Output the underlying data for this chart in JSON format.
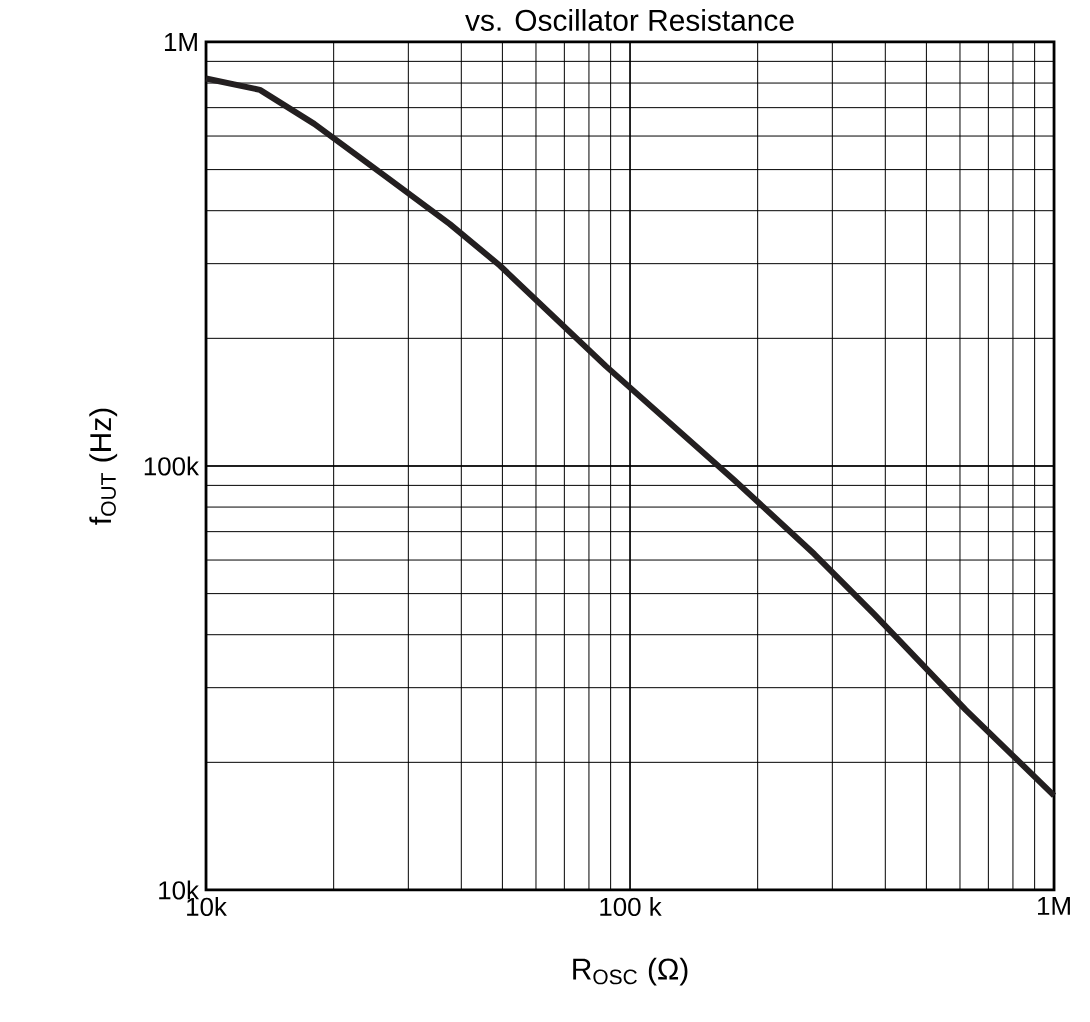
{
  "chart_data": {
    "type": "line",
    "title": "vs. Oscillator Resistance",
    "xlabel": "R$_{OSC}$ (Ω)",
    "ylabel": "f$_{OUT}$ (Hz)",
    "log": "xy",
    "grid": true,
    "x": [
      10000,
      13400,
      18000,
      27200,
      37600,
      49300,
      87700,
      176000,
      272000,
      376000,
      619000,
      1000000
    ],
    "series": [
      {
        "color": "#231f20",
        "values": [
          820000,
          771000,
          641000,
          473000,
          372000,
          297000,
          172000,
          92700,
          62000,
          44800,
          26600,
          16700
        ]
      }
    ],
    "xlim": [
      10000,
      1000000
    ],
    "ylim": [
      10000,
      1000000
    ],
    "xticks": [
      {
        "value": 10000,
        "label": "10k"
      },
      {
        "value": 100000,
        "label": "100 k"
      },
      {
        "value": 1000000,
        "label": "1M"
      }
    ],
    "yticks": [
      {
        "value": 10000,
        "label": "10k"
      },
      {
        "value": 100000,
        "label": "100k"
      },
      {
        "value": 1000000,
        "label": "1M"
      }
    ],
    "marker": "none",
    "line_style": "solid"
  }
}
